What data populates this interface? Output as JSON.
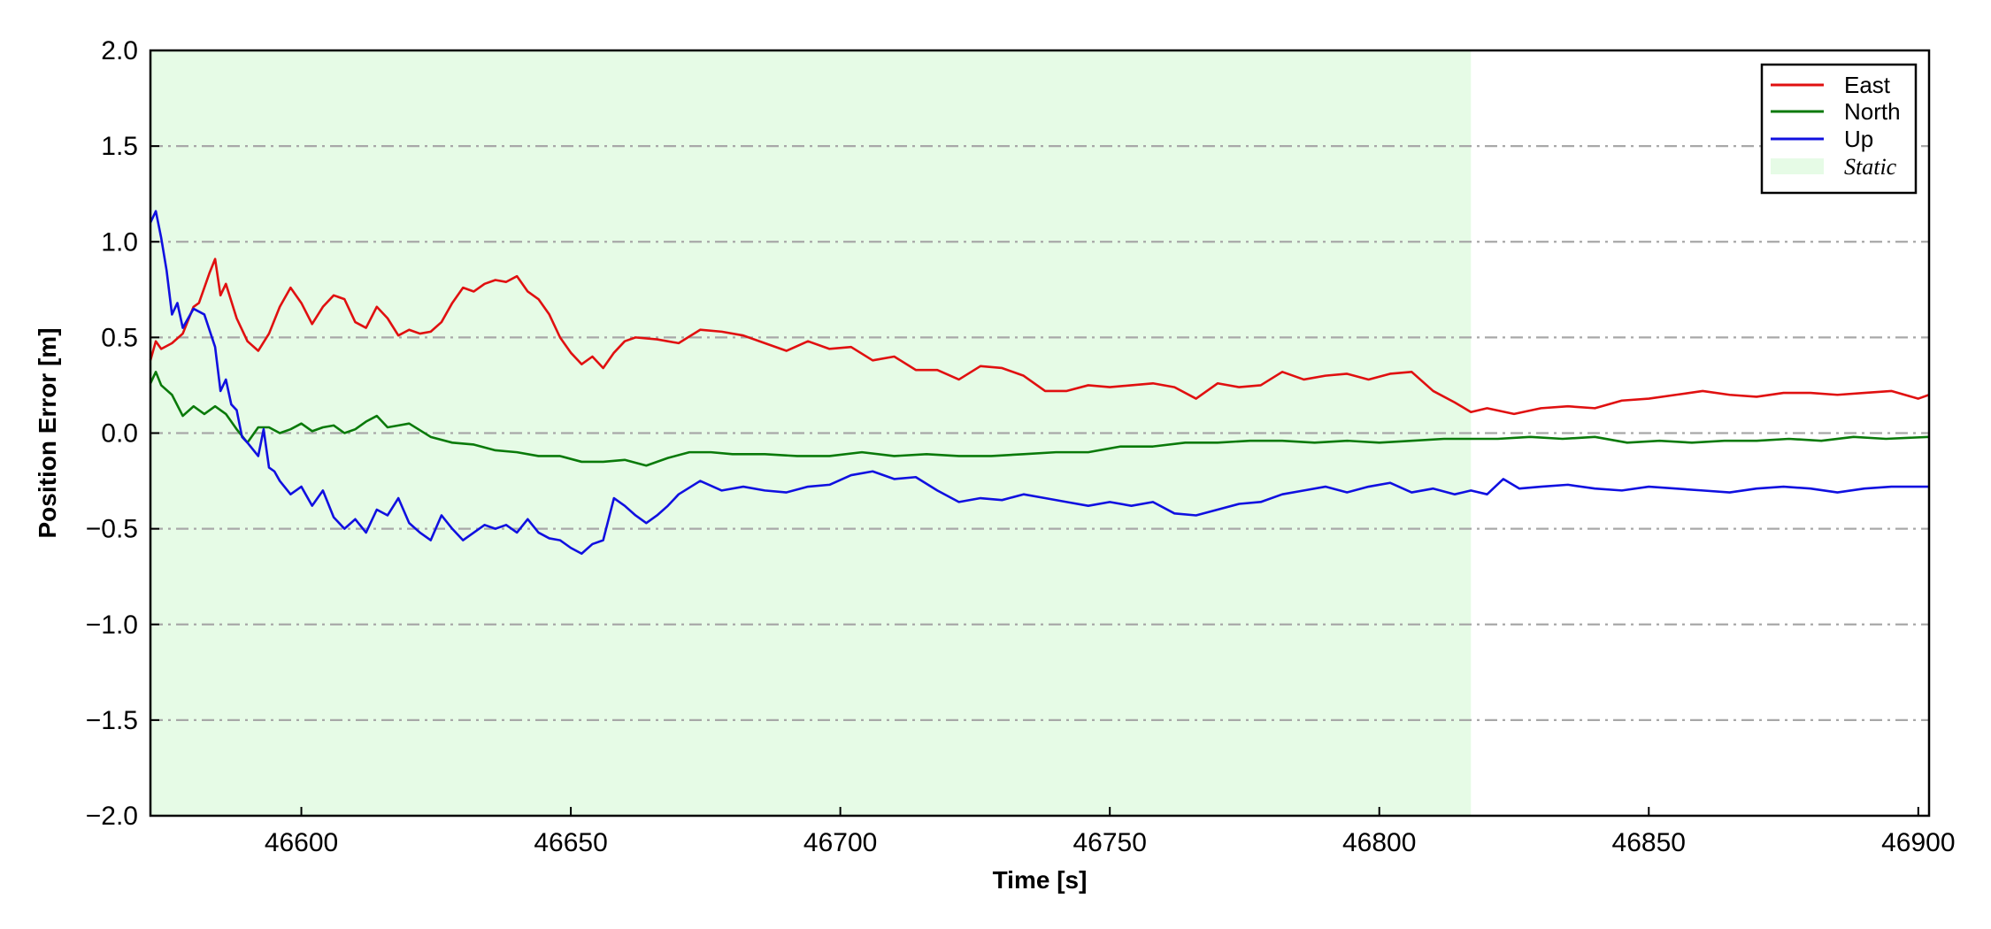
{
  "chart_data": {
    "type": "line",
    "xlabel": "Time [s]",
    "ylabel": "Position Error [m]",
    "xlim": [
      46572,
      46902
    ],
    "ylim": [
      -2.0,
      2.0
    ],
    "xticks": [
      46600,
      46650,
      46700,
      46750,
      46800,
      46850,
      46900
    ],
    "yticks": [
      2.0,
      1.5,
      1.0,
      0.5,
      0.0,
      -0.5,
      -1.0,
      -1.5,
      -2.0
    ],
    "ytick_labels": [
      "2.0",
      "1.5",
      "1.0",
      "0.5",
      "0.0",
      "−0.5",
      "−1.0",
      "−1.5",
      "−2.0"
    ],
    "grid": "horizontal dash-dot",
    "legend_position": "top-right",
    "shaded_region": {
      "label": "Static",
      "x_start": 46572,
      "x_end": 46817,
      "color": "#e6fbe6"
    },
    "series": [
      {
        "name": "East",
        "color": "#e01010",
        "x": [
          46572,
          46573,
          46574,
          46576,
          46578,
          46580,
          46581,
          46582,
          46583,
          46584,
          46585,
          46586,
          46588,
          46590,
          46592,
          46594,
          46596,
          46598,
          46600,
          46602,
          46604,
          46606,
          46608,
          46610,
          46612,
          46614,
          46616,
          46618,
          46620,
          46622,
          46624,
          46626,
          46628,
          46630,
          46632,
          46634,
          46636,
          46638,
          46640,
          46642,
          46644,
          46646,
          46648,
          46650,
          46652,
          46654,
          46656,
          46658,
          46660,
          46662,
          46666,
          46670,
          46674,
          46678,
          46682,
          46686,
          46690,
          46694,
          46698,
          46702,
          46706,
          46710,
          46714,
          46718,
          46722,
          46726,
          46730,
          46734,
          46738,
          46742,
          46746,
          46750,
          46754,
          46758,
          46762,
          46766,
          46770,
          46774,
          46778,
          46782,
          46786,
          46790,
          46794,
          46798,
          46802,
          46806,
          46810,
          46814,
          46817,
          46820,
          46825,
          46830,
          46835,
          46840,
          46845,
          46850,
          46855,
          46860,
          46865,
          46870,
          46875,
          46880,
          46885,
          46890,
          46895,
          46900,
          46902
        ],
        "y": [
          0.38,
          0.48,
          0.44,
          0.47,
          0.52,
          0.66,
          0.68,
          0.76,
          0.84,
          0.91,
          0.72,
          0.78,
          0.6,
          0.48,
          0.43,
          0.52,
          0.66,
          0.76,
          0.68,
          0.57,
          0.66,
          0.72,
          0.7,
          0.58,
          0.55,
          0.66,
          0.6,
          0.51,
          0.54,
          0.52,
          0.53,
          0.58,
          0.68,
          0.76,
          0.74,
          0.78,
          0.8,
          0.79,
          0.82,
          0.74,
          0.7,
          0.62,
          0.5,
          0.42,
          0.36,
          0.4,
          0.34,
          0.42,
          0.48,
          0.5,
          0.49,
          0.47,
          0.54,
          0.53,
          0.51,
          0.47,
          0.43,
          0.48,
          0.44,
          0.45,
          0.38,
          0.4,
          0.33,
          0.33,
          0.28,
          0.35,
          0.34,
          0.3,
          0.22,
          0.22,
          0.25,
          0.24,
          0.25,
          0.26,
          0.24,
          0.18,
          0.26,
          0.24,
          0.25,
          0.32,
          0.28,
          0.3,
          0.31,
          0.28,
          0.31,
          0.32,
          0.22,
          0.16,
          0.11,
          0.13,
          0.1,
          0.13,
          0.14,
          0.13,
          0.17,
          0.18,
          0.2,
          0.22,
          0.2,
          0.19,
          0.21,
          0.21,
          0.2,
          0.21,
          0.22,
          0.18,
          0.2
        ]
      },
      {
        "name": "North",
        "color": "#0a7a0a",
        "x": [
          46572,
          46573,
          46574,
          46576,
          46578,
          46580,
          46582,
          46584,
          46586,
          46588,
          46590,
          46592,
          46594,
          46596,
          46598,
          46600,
          46602,
          46604,
          46606,
          46608,
          46610,
          46612,
          46614,
          46616,
          46618,
          46620,
          46624,
          46628,
          46632,
          46636,
          46640,
          46644,
          46648,
          46652,
          46656,
          46660,
          46664,
          46668,
          46672,
          46676,
          46680,
          46686,
          46692,
          46698,
          46704,
          46710,
          46716,
          46722,
          46728,
          46734,
          46740,
          46746,
          46752,
          46758,
          46764,
          46770,
          46776,
          46782,
          46788,
          46794,
          46800,
          46806,
          46812,
          46817,
          46822,
          46828,
          46834,
          46840,
          46846,
          46852,
          46858,
          46864,
          46870,
          46876,
          46882,
          46888,
          46894,
          46902
        ],
        "y": [
          0.26,
          0.32,
          0.25,
          0.2,
          0.09,
          0.14,
          0.1,
          0.14,
          0.1,
          0.02,
          -0.05,
          0.03,
          0.03,
          0.0,
          0.02,
          0.05,
          0.01,
          0.03,
          0.04,
          0.0,
          0.02,
          0.06,
          0.09,
          0.03,
          0.04,
          0.05,
          -0.02,
          -0.05,
          -0.06,
          -0.09,
          -0.1,
          -0.12,
          -0.12,
          -0.15,
          -0.15,
          -0.14,
          -0.17,
          -0.13,
          -0.1,
          -0.1,
          -0.11,
          -0.11,
          -0.12,
          -0.12,
          -0.1,
          -0.12,
          -0.11,
          -0.12,
          -0.12,
          -0.11,
          -0.1,
          -0.1,
          -0.07,
          -0.07,
          -0.05,
          -0.05,
          -0.04,
          -0.04,
          -0.05,
          -0.04,
          -0.05,
          -0.04,
          -0.03,
          -0.03,
          -0.03,
          -0.02,
          -0.03,
          -0.02,
          -0.05,
          -0.04,
          -0.05,
          -0.04,
          -0.04,
          -0.03,
          -0.04,
          -0.02,
          -0.03,
          -0.02
        ]
      },
      {
        "name": "Up",
        "color": "#1010e0",
        "x": [
          46572,
          46573,
          46574,
          46575,
          46576,
          46577,
          46578,
          46579,
          46580,
          46582,
          46584,
          46585,
          46586,
          46587,
          46588,
          46589,
          46590,
          46592,
          46593,
          46594,
          46595,
          46596,
          46598,
          46600,
          46602,
          46604,
          46606,
          46608,
          46610,
          46612,
          46614,
          46616,
          46618,
          46620,
          46622,
          46624,
          46626,
          46628,
          46630,
          46632,
          46634,
          46636,
          46638,
          46640,
          46642,
          46644,
          46646,
          46648,
          46650,
          46652,
          46654,
          46656,
          46658,
          46660,
          46662,
          46664,
          46666,
          46668,
          46670,
          46674,
          46678,
          46682,
          46686,
          46690,
          46694,
          46698,
          46702,
          46706,
          46710,
          46714,
          46718,
          46722,
          46726,
          46730,
          46734,
          46738,
          46742,
          46746,
          46750,
          46754,
          46758,
          46762,
          46766,
          46770,
          46774,
          46778,
          46782,
          46786,
          46790,
          46794,
          46798,
          46802,
          46806,
          46810,
          46814,
          46817,
          46820,
          46823,
          46826,
          46830,
          46835,
          46840,
          46845,
          46850,
          46855,
          46860,
          46865,
          46870,
          46875,
          46880,
          46885,
          46890,
          46895,
          46902
        ],
        "y": [
          1.1,
          1.16,
          1.02,
          0.85,
          0.62,
          0.68,
          0.55,
          0.6,
          0.65,
          0.62,
          0.45,
          0.22,
          0.28,
          0.15,
          0.12,
          -0.02,
          -0.05,
          -0.12,
          0.02,
          -0.18,
          -0.2,
          -0.25,
          -0.32,
          -0.28,
          -0.38,
          -0.3,
          -0.44,
          -0.5,
          -0.45,
          -0.52,
          -0.4,
          -0.43,
          -0.34,
          -0.47,
          -0.52,
          -0.56,
          -0.43,
          -0.5,
          -0.56,
          -0.52,
          -0.48,
          -0.5,
          -0.48,
          -0.52,
          -0.45,
          -0.52,
          -0.55,
          -0.56,
          -0.6,
          -0.63,
          -0.58,
          -0.56,
          -0.34,
          -0.38,
          -0.43,
          -0.47,
          -0.43,
          -0.38,
          -0.32,
          -0.25,
          -0.3,
          -0.28,
          -0.3,
          -0.31,
          -0.28,
          -0.27,
          -0.22,
          -0.2,
          -0.24,
          -0.23,
          -0.3,
          -0.36,
          -0.34,
          -0.35,
          -0.32,
          -0.34,
          -0.36,
          -0.38,
          -0.36,
          -0.38,
          -0.36,
          -0.42,
          -0.43,
          -0.4,
          -0.37,
          -0.36,
          -0.32,
          -0.3,
          -0.28,
          -0.31,
          -0.28,
          -0.26,
          -0.31,
          -0.29,
          -0.32,
          -0.3,
          -0.32,
          -0.24,
          -0.29,
          -0.28,
          -0.27,
          -0.29,
          -0.3,
          -0.28,
          -0.29,
          -0.3,
          -0.31,
          -0.29,
          -0.28,
          -0.29,
          -0.31,
          -0.29,
          -0.28,
          -0.28
        ]
      }
    ]
  }
}
